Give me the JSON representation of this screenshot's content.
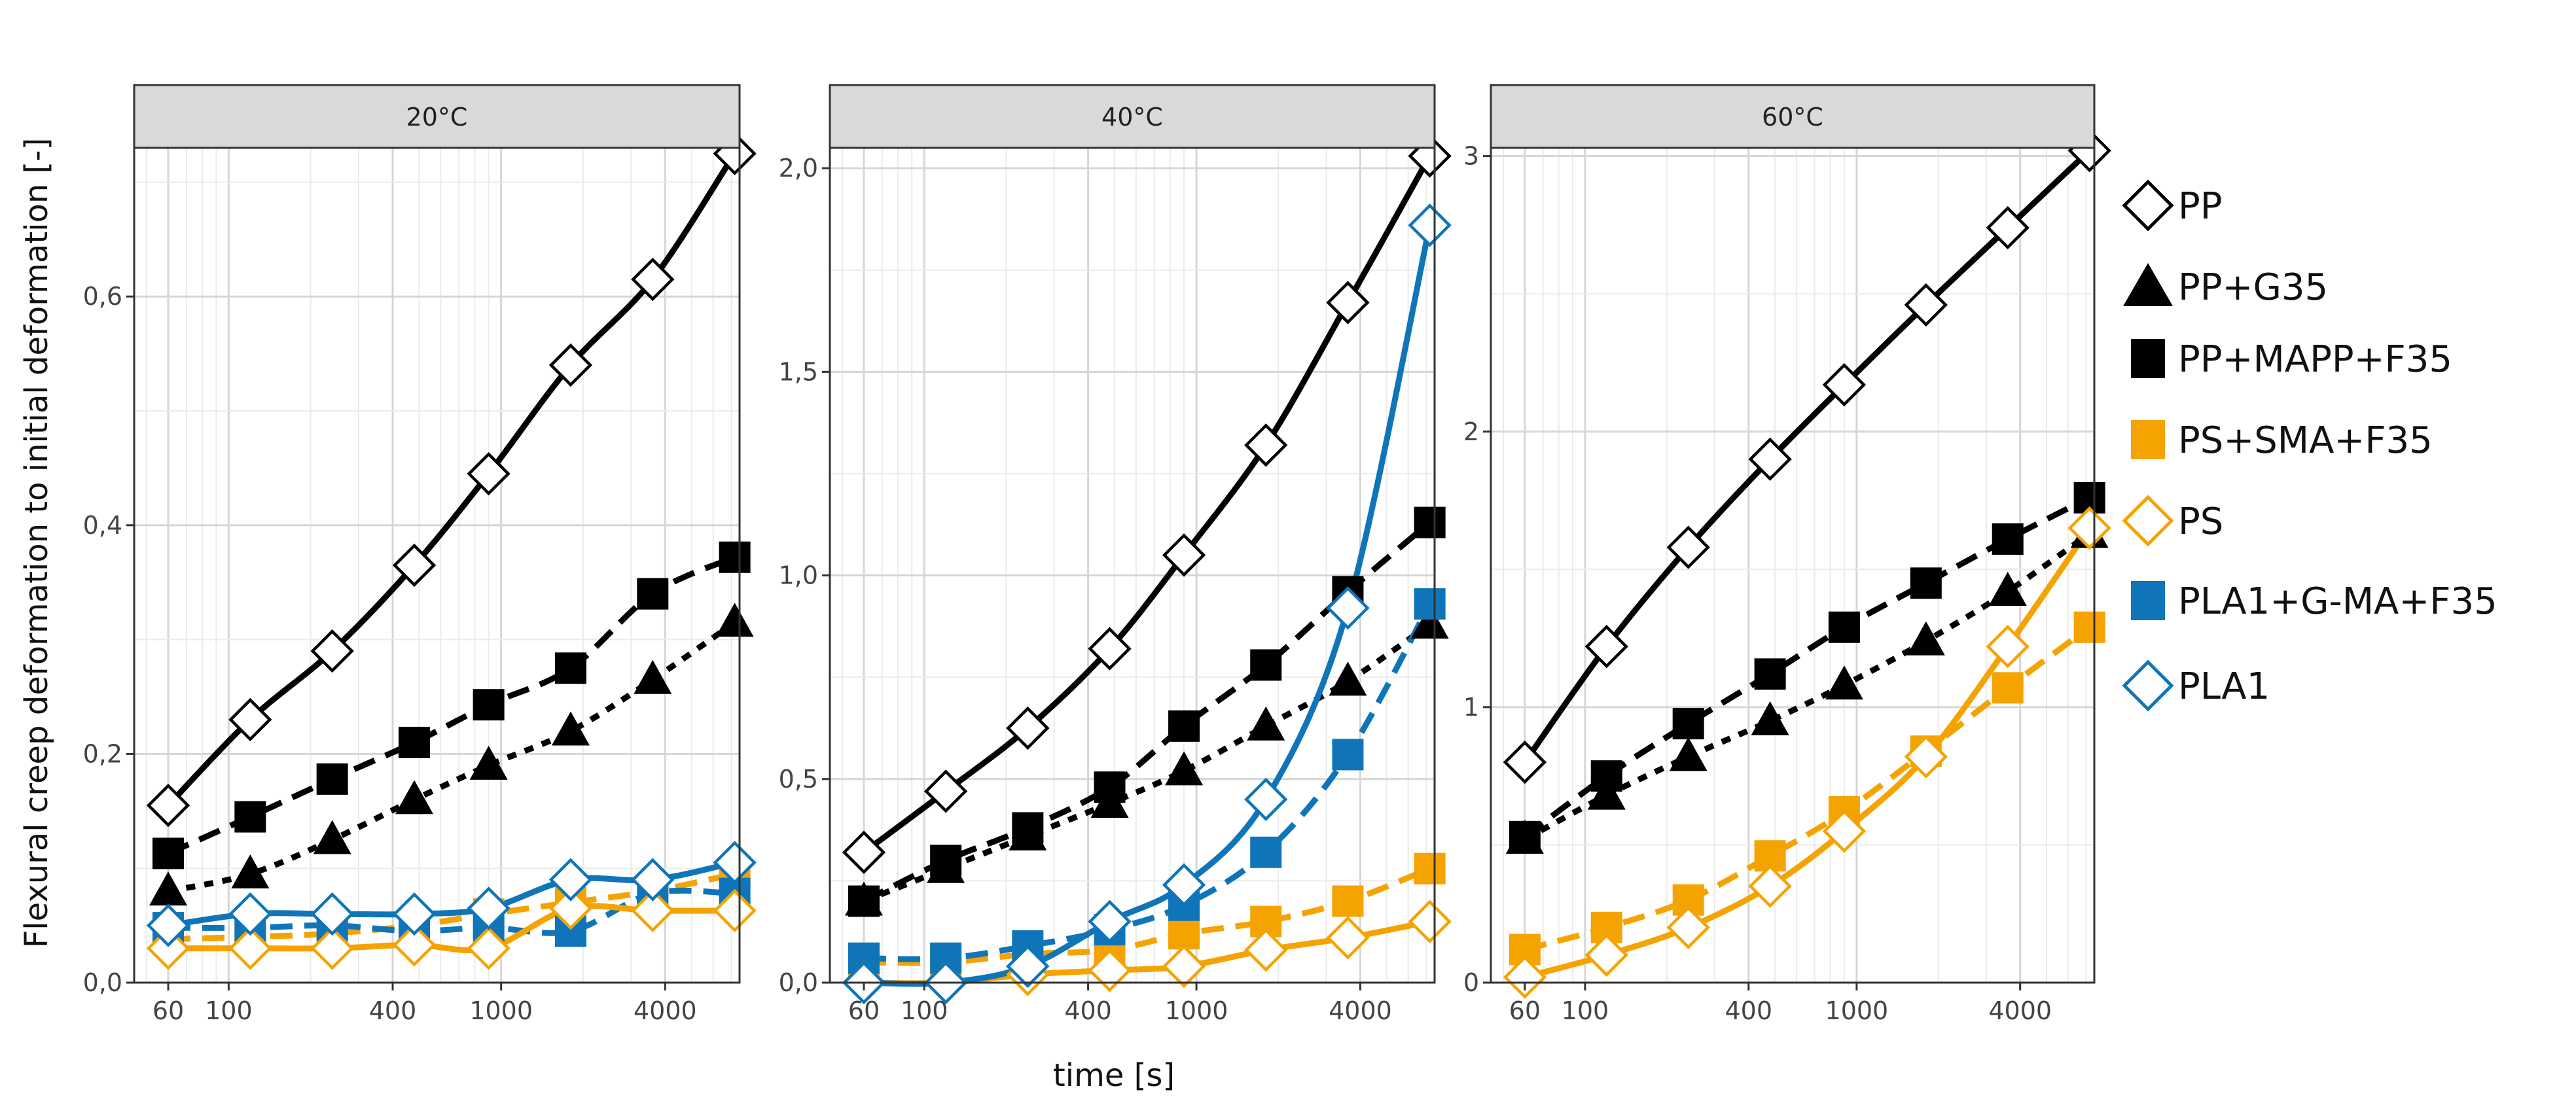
{
  "chart_data": {
    "type": "line",
    "xlabel": "time [s]",
    "ylabel": "Flexural creep deformation to initial deformation [-]",
    "x_scale": "log",
    "xlim": [
      45,
      7500
    ],
    "x_ticks": [
      60,
      100,
      400,
      1000,
      4000
    ],
    "x_tick_labels": [
      "60",
      "100",
      "400",
      "1000",
      "4000"
    ],
    "x": [
      60,
      120,
      240,
      480,
      900,
      1800,
      3600,
      7200
    ],
    "legend": {
      "position": "right",
      "entries": [
        {
          "label": "PP",
          "series": "PP"
        },
        {
          "label": "PP+G35",
          "series": "PP+G35"
        },
        {
          "label": "PP+MAPP+F35",
          "series": "PP+MAPP+F35"
        },
        {
          "label": "PS+SMA+F35",
          "series": "PS+SMA+F35"
        },
        {
          "label": "PS",
          "series": "PS"
        },
        {
          "label": "PLA1+G-MA+F35",
          "series": "PLA1+G-MA+F35"
        },
        {
          "label": "PLA1",
          "series": "PLA1"
        }
      ]
    },
    "styles": {
      "PP": {
        "color": "#000000",
        "marker": "diamond-open",
        "line": "solid"
      },
      "PP+G35": {
        "color": "#000000",
        "marker": "triangle",
        "line": "dotted"
      },
      "PP+MAPP+F35": {
        "color": "#000000",
        "marker": "square",
        "line": "dashed"
      },
      "PS+SMA+F35": {
        "color": "#F5A300",
        "marker": "square",
        "line": "dashed"
      },
      "PS": {
        "color": "#F5A300",
        "marker": "diamond-open",
        "line": "solid"
      },
      "PLA1+G-MA+F35": {
        "color": "#0F75B8",
        "marker": "square",
        "line": "dashed"
      },
      "PLA1": {
        "color": "#0F75B8",
        "marker": "diamond-open",
        "line": "solid"
      }
    },
    "panels": [
      {
        "title": "20°C",
        "ylim": [
          0,
          0.73
        ],
        "y_ticks": [
          0,
          0.2,
          0.4,
          0.6
        ],
        "y_tick_labels": [
          "0,0",
          "0,2",
          "0,4",
          "0,6"
        ],
        "series": [
          {
            "name": "PP",
            "values": [
              0.155,
              0.23,
              0.29,
              0.365,
              0.445,
              0.54,
              0.615,
              0.725
            ]
          },
          {
            "name": "PP+G35",
            "values": [
              0.08,
              0.095,
              0.125,
              0.16,
              0.19,
              0.22,
              0.265,
              0.315
            ]
          },
          {
            "name": "PP+MAPP+F35",
            "values": [
              0.113,
              0.145,
              0.178,
              0.21,
              0.243,
              0.275,
              0.34,
              0.372
            ]
          },
          {
            "name": "PS+SMA+F35",
            "values": [
              0.038,
              0.04,
              0.043,
              0.05,
              0.06,
              0.07,
              0.08,
              0.095
            ]
          },
          {
            "name": "PS",
            "values": [
              0.03,
              0.03,
              0.03,
              0.033,
              0.03,
              0.065,
              0.063,
              0.063
            ]
          },
          {
            "name": "PLA1+G-MA+F35",
            "values": [
              0.048,
              0.048,
              0.05,
              0.045,
              0.048,
              0.045,
              0.078,
              0.078
            ]
          },
          {
            "name": "PLA1",
            "values": [
              0.05,
              0.06,
              0.06,
              0.06,
              0.065,
              0.09,
              0.09,
              0.105
            ]
          }
        ]
      },
      {
        "title": "40°C",
        "ylim": [
          0,
          2.05
        ],
        "y_ticks": [
          0,
          0.5,
          1.0,
          1.5,
          2.0
        ],
        "y_tick_labels": [
          "0,0",
          "0,5",
          "1,0",
          "1,5",
          "2,0"
        ],
        "series": [
          {
            "name": "PP",
            "values": [
              0.32,
              0.47,
              0.625,
              0.82,
              1.05,
              1.32,
              1.67,
              2.03
            ]
          },
          {
            "name": "PP+G35",
            "values": [
              0.2,
              0.28,
              0.36,
              0.44,
              0.52,
              0.63,
              0.74,
              0.88
            ]
          },
          {
            "name": "PP+MAPP+F35",
            "values": [
              0.2,
              0.3,
              0.38,
              0.48,
              0.63,
              0.78,
              0.96,
              1.13
            ]
          },
          {
            "name": "PS+SMA+F35",
            "values": [
              0.05,
              0.05,
              0.07,
              0.08,
              0.12,
              0.15,
              0.2,
              0.28
            ]
          },
          {
            "name": "PS",
            "values": [
              0.0,
              0.0,
              0.02,
              0.03,
              0.04,
              0.08,
              0.11,
              0.15
            ]
          },
          {
            "name": "PLA1+G-MA+F35",
            "values": [
              0.06,
              0.06,
              0.09,
              0.13,
              0.19,
              0.32,
              0.56,
              0.93
            ]
          },
          {
            "name": "PLA1",
            "values": [
              0.0,
              0.0,
              0.04,
              0.15,
              0.24,
              0.45,
              0.92,
              1.86
            ]
          }
        ]
      },
      {
        "title": "60°C",
        "ylim": [
          0,
          3.03
        ],
        "y_ticks": [
          0,
          1,
          2,
          3
        ],
        "y_tick_labels": [
          "0",
          "1",
          "2",
          "3"
        ],
        "series": [
          {
            "name": "PP",
            "values": [
              0.8,
              1.22,
              1.58,
              1.9,
              2.17,
              2.46,
              2.74,
              3.02
            ]
          },
          {
            "name": "PP+G35",
            "values": [
              0.52,
              0.68,
              0.82,
              0.95,
              1.08,
              1.24,
              1.42,
              1.63
            ]
          },
          {
            "name": "PP+MAPP+F35",
            "values": [
              0.53,
              0.75,
              0.94,
              1.12,
              1.29,
              1.45,
              1.61,
              1.76
            ]
          },
          {
            "name": "PS+SMA+F35",
            "values": [
              0.12,
              0.2,
              0.3,
              0.46,
              0.62,
              0.84,
              1.07,
              1.29
            ]
          },
          {
            "name": "PS",
            "values": [
              0.02,
              0.1,
              0.2,
              0.35,
              0.55,
              0.82,
              1.22,
              1.65
            ]
          }
        ]
      }
    ]
  }
}
